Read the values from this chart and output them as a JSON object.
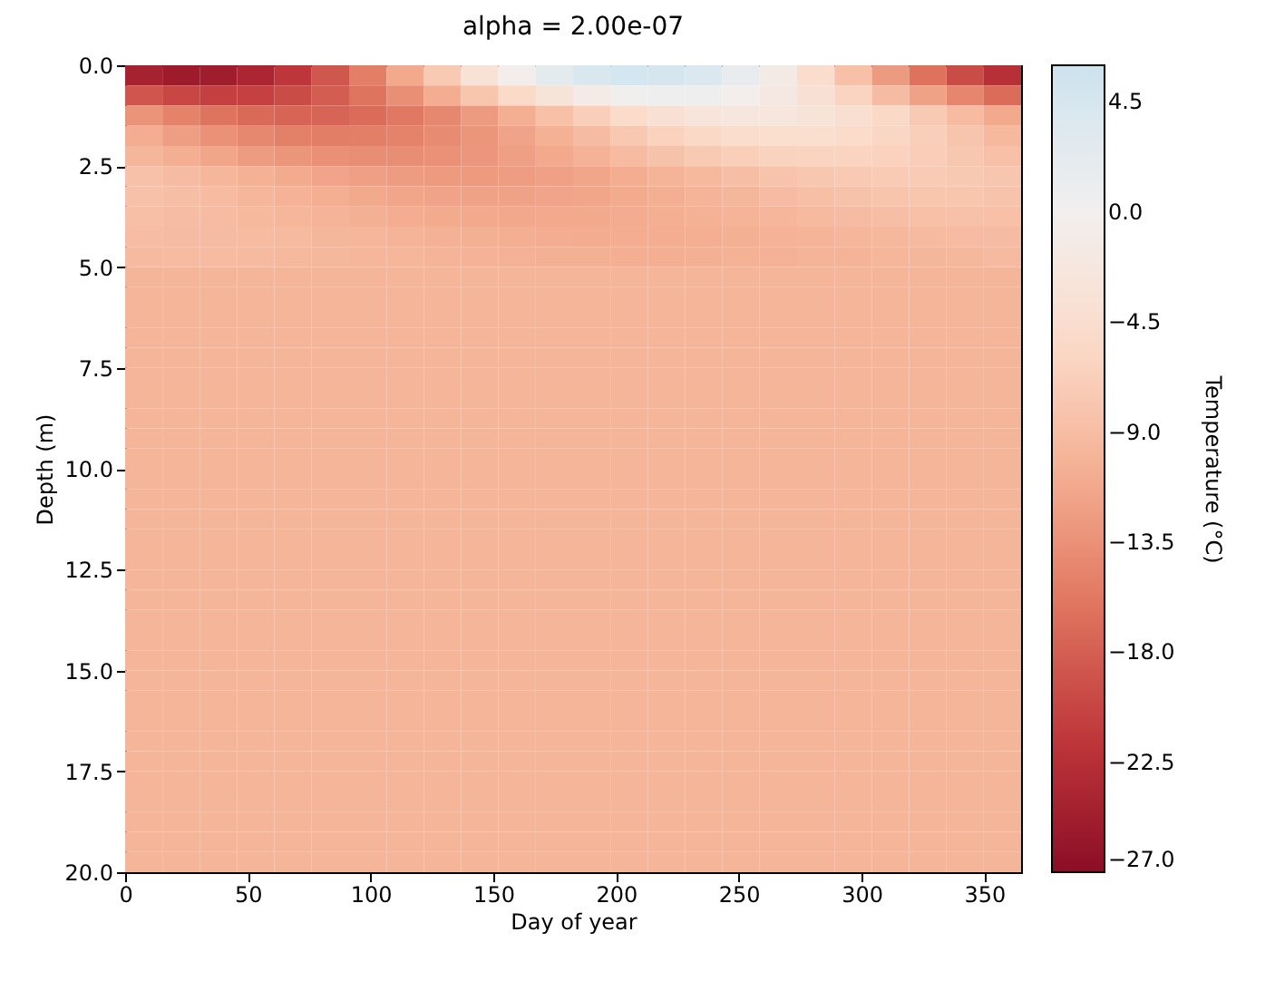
{
  "chart_data": {
    "type": "heatmap",
    "title": "alpha = 2.00e-07",
    "xlabel": "Day of year",
    "ylabel": "Depth (m)",
    "clabel": "Temperature (°C)",
    "x": [
      7.6,
      22.8,
      38.0,
      53.2,
      68.4,
      83.6,
      98.9,
      114.1,
      129.3,
      144.5,
      159.7,
      174.9,
      190.1,
      205.3,
      220.5,
      235.7,
      250.9,
      266.1,
      281.4,
      296.6,
      311.8,
      327.0,
      342.2,
      357.4
    ],
    "y": [
      0.25,
      0.75,
      1.25,
      1.75,
      2.25,
      2.75,
      3.25,
      3.75,
      4.25,
      4.75,
      5.25,
      5.75,
      6.25,
      6.75,
      7.25,
      7.75,
      8.25,
      8.75,
      9.25,
      9.75,
      10.25,
      10.75,
      11.25,
      11.75,
      12.25,
      12.75,
      13.25,
      13.75,
      14.25,
      14.75,
      15.25,
      15.75,
      16.25,
      16.75,
      17.25,
      17.75,
      18.25,
      18.75,
      19.25,
      19.75
    ],
    "xlim": [
      0,
      365
    ],
    "xticks": [
      0,
      50,
      100,
      150,
      200,
      250,
      300,
      350
    ],
    "ylim": [
      20,
      0
    ],
    "yticks": [
      {
        "value": 0,
        "label": "0.0"
      },
      {
        "value": 2.5,
        "label": "2.5"
      },
      {
        "value": 5,
        "label": "5.0"
      },
      {
        "value": 7.5,
        "label": "7.5"
      },
      {
        "value": 10,
        "label": "10.0"
      },
      {
        "value": 12.5,
        "label": "12.5"
      },
      {
        "value": 15,
        "label": "15.0"
      },
      {
        "value": 17.5,
        "label": "17.5"
      },
      {
        "value": 20,
        "label": "20.0"
      }
    ],
    "clim": [
      -27,
      6
    ],
    "cticks": [
      {
        "value": -27,
        "label": "−27.0"
      },
      {
        "value": -22.5,
        "label": "−22.5"
      },
      {
        "value": -18,
        "label": "−18.0"
      },
      {
        "value": -13.5,
        "label": "−13.5"
      },
      {
        "value": -9,
        "label": "−9.0"
      },
      {
        "value": -4.5,
        "label": "−4.5"
      },
      {
        "value": 0,
        "label": "0.0"
      },
      {
        "value": 4.5,
        "label": "4.5"
      }
    ],
    "cells": [
      [
        -24.3,
        -25.1,
        -24.9,
        -23.7,
        -21.6,
        -18.7,
        -15.2,
        -11.3,
        -7.4,
        -3.6,
        -0.3,
        2.4,
        4.3,
        5.1,
        4.9,
        3.7,
        1.6,
        -1.3,
        -4.8,
        -8.7,
        -12.6,
        -16.4,
        -19.7,
        -22.4
      ],
      [
        -18.8,
        -20.1,
        -20.7,
        -20.6,
        -19.7,
        -18.2,
        -16.2,
        -13.7,
        -10.9,
        -8.1,
        -5.5,
        -3.1,
        -1.2,
        0.1,
        0.7,
        0.6,
        -0.3,
        -1.8,
        -3.8,
        -6.3,
        -9.1,
        -11.9,
        -14.5,
        -16.9
      ],
      [
        -13.2,
        -14.9,
        -16.2,
        -17.1,
        -17.6,
        -17.5,
        -16.9,
        -15.8,
        -14.4,
        -12.6,
        -10.7,
        -8.7,
        -6.8,
        -5.1,
        -3.8,
        -2.9,
        -2.4,
        -2.5,
        -3.1,
        -4.2,
        -5.6,
        -7.4,
        -9.3,
        -11.3
      ],
      [
        -10.9,
        -12.3,
        -13.5,
        -14.4,
        -15.1,
        -15.4,
        -15.3,
        -14.9,
        -14.1,
        -13.1,
        -11.8,
        -10.5,
        -9.1,
        -7.7,
        -6.5,
        -5.6,
        -4.9,
        -4.6,
        -4.7,
        -5.1,
        -5.9,
        -6.9,
        -8.2,
        -9.5
      ],
      [
        -9.7,
        -10.7,
        -11.6,
        -12.5,
        -13.1,
        -13.6,
        -13.8,
        -13.8,
        -13.5,
        -12.9,
        -12.2,
        -11.3,
        -10.3,
        -9.3,
        -8.4,
        -7.5,
        -6.9,
        -6.4,
        -6.2,
        -6.2,
        -6.5,
        -7.1,
        -7.8,
        -8.7
      ],
      [
        -8.5,
        -9.1,
        -9.8,
        -10.5,
        -11.1,
        -11.7,
        -12.2,
        -12.5,
        -12.7,
        -12.7,
        -12.4,
        -12.1,
        -11.5,
        -10.9,
        -10.2,
        -9.5,
        -8.9,
        -8.3,
        -7.8,
        -7.5,
        -7.3,
        -7.3,
        -7.6,
        -7.9
      ],
      [
        -8.5,
        -8.9,
        -9.3,
        -9.8,
        -10.3,
        -10.8,
        -11.2,
        -11.6,
        -11.8,
        -11.9,
        -11.9,
        -11.7,
        -11.5,
        -11.1,
        -10.7,
        -10.2,
        -9.7,
        -9.2,
        -8.8,
        -8.4,
        -8.2,
        -8.1,
        -8.1,
        -8.3
      ],
      [
        -8.8,
        -9.0,
        -9.2,
        -9.5,
        -9.9,
        -10.2,
        -10.6,
        -10.9,
        -11.1,
        -11.3,
        -11.4,
        -11.3,
        -11.2,
        -11.0,
        -10.8,
        -10.5,
        -10.1,
        -9.8,
        -9.4,
        -9.1,
        -8.9,
        -8.7,
        -8.6,
        -8.7
      ],
      [
        -9.0,
        -9.1,
        -9.1,
        -9.3,
        -9.4,
        -9.7,
        -9.9,
        -10.2,
        -10.4,
        -10.6,
        -10.8,
        -10.9,
        -11.0,
        -10.9,
        -10.9,
        -10.7,
        -10.6,
        -10.3,
        -10.1,
        -9.8,
        -9.6,
        -9.4,
        -9.2,
        -9.1
      ],
      [
        -9.4,
        -9.3,
        -9.3,
        -9.4,
        -9.5,
        -9.6,
        -9.8,
        -9.9,
        -10.1,
        -10.3,
        -10.4,
        -10.6,
        -10.6,
        -10.7,
        -10.7,
        -10.6,
        -10.5,
        -10.4,
        -10.2,
        -10.1,
        -9.9,
        -9.7,
        -9.6,
        -9.4
      ],
      [
        -10,
        -10,
        -10,
        -10,
        -10,
        -10,
        -10,
        -10,
        -10,
        -10,
        -10,
        -10,
        -10,
        -10,
        -10,
        -10,
        -10,
        -10,
        -10,
        -10,
        -10,
        -10,
        -10,
        -10
      ],
      [
        -10,
        -10,
        -10,
        -10,
        -10,
        -10,
        -10,
        -10,
        -10,
        -10,
        -10,
        -10,
        -10,
        -10,
        -10,
        -10,
        -10,
        -10,
        -10,
        -10,
        -10,
        -10,
        -10,
        -10
      ],
      [
        -10,
        -10,
        -10,
        -10,
        -10,
        -10,
        -10,
        -10,
        -10,
        -10,
        -10,
        -10,
        -10,
        -10,
        -10,
        -10,
        -10,
        -10,
        -10,
        -10,
        -10,
        -10,
        -10,
        -10
      ],
      [
        -10,
        -10,
        -10,
        -10,
        -10,
        -10,
        -10,
        -10,
        -10,
        -10,
        -10,
        -10,
        -10,
        -10,
        -10,
        -10,
        -10,
        -10,
        -10,
        -10,
        -10,
        -10,
        -10,
        -10
      ],
      [
        -10,
        -10,
        -10,
        -10,
        -10,
        -10,
        -10,
        -10,
        -10,
        -10,
        -10,
        -10,
        -10,
        -10,
        -10,
        -10,
        -10,
        -10,
        -10,
        -10,
        -10,
        -10,
        -10,
        -10
      ],
      [
        -10,
        -10,
        -10,
        -10,
        -10,
        -10,
        -10,
        -10,
        -10,
        -10,
        -10,
        -10,
        -10,
        -10,
        -10,
        -10,
        -10,
        -10,
        -10,
        -10,
        -10,
        -10,
        -10,
        -10
      ],
      [
        -10,
        -10,
        -10,
        -10,
        -10,
        -10,
        -10,
        -10,
        -10,
        -10,
        -10,
        -10,
        -10,
        -10,
        -10,
        -10,
        -10,
        -10,
        -10,
        -10,
        -10,
        -10,
        -10,
        -10
      ],
      [
        -10,
        -10,
        -10,
        -10,
        -10,
        -10,
        -10,
        -10,
        -10,
        -10,
        -10,
        -10,
        -10,
        -10,
        -10,
        -10,
        -10,
        -10,
        -10,
        -10,
        -10,
        -10,
        -10,
        -10
      ],
      [
        -10,
        -10,
        -10,
        -10,
        -10,
        -10,
        -10,
        -10,
        -10,
        -10,
        -10,
        -10,
        -10,
        -10,
        -10,
        -10,
        -10,
        -10,
        -10,
        -10,
        -10,
        -10,
        -10,
        -10
      ],
      [
        -10,
        -10,
        -10,
        -10,
        -10,
        -10,
        -10,
        -10,
        -10,
        -10,
        -10,
        -10,
        -10,
        -10,
        -10,
        -10,
        -10,
        -10,
        -10,
        -10,
        -10,
        -10,
        -10,
        -10
      ],
      [
        -10,
        -10,
        -10,
        -10,
        -10,
        -10,
        -10,
        -10,
        -10,
        -10,
        -10,
        -10,
        -10,
        -10,
        -10,
        -10,
        -10,
        -10,
        -10,
        -10,
        -10,
        -10,
        -10,
        -10
      ],
      [
        -10,
        -10,
        -10,
        -10,
        -10,
        -10,
        -10,
        -10,
        -10,
        -10,
        -10,
        -10,
        -10,
        -10,
        -10,
        -10,
        -10,
        -10,
        -10,
        -10,
        -10,
        -10,
        -10,
        -10
      ],
      [
        -10,
        -10,
        -10,
        -10,
        -10,
        -10,
        -10,
        -10,
        -10,
        -10,
        -10,
        -10,
        -10,
        -10,
        -10,
        -10,
        -10,
        -10,
        -10,
        -10,
        -10,
        -10,
        -10,
        -10
      ],
      [
        -10,
        -10,
        -10,
        -10,
        -10,
        -10,
        -10,
        -10,
        -10,
        -10,
        -10,
        -10,
        -10,
        -10,
        -10,
        -10,
        -10,
        -10,
        -10,
        -10,
        -10,
        -10,
        -10,
        -10
      ],
      [
        -10,
        -10,
        -10,
        -10,
        -10,
        -10,
        -10,
        -10,
        -10,
        -10,
        -10,
        -10,
        -10,
        -10,
        -10,
        -10,
        -10,
        -10,
        -10,
        -10,
        -10,
        -10,
        -10,
        -10
      ],
      [
        -10,
        -10,
        -10,
        -10,
        -10,
        -10,
        -10,
        -10,
        -10,
        -10,
        -10,
        -10,
        -10,
        -10,
        -10,
        -10,
        -10,
        -10,
        -10,
        -10,
        -10,
        -10,
        -10,
        -10
      ],
      [
        -10,
        -10,
        -10,
        -10,
        -10,
        -10,
        -10,
        -10,
        -10,
        -10,
        -10,
        -10,
        -10,
        -10,
        -10,
        -10,
        -10,
        -10,
        -10,
        -10,
        -10,
        -10,
        -10,
        -10
      ],
      [
        -10,
        -10,
        -10,
        -10,
        -10,
        -10,
        -10,
        -10,
        -10,
        -10,
        -10,
        -10,
        -10,
        -10,
        -10,
        -10,
        -10,
        -10,
        -10,
        -10,
        -10,
        -10,
        -10,
        -10
      ],
      [
        -10,
        -10,
        -10,
        -10,
        -10,
        -10,
        -10,
        -10,
        -10,
        -10,
        -10,
        -10,
        -10,
        -10,
        -10,
        -10,
        -10,
        -10,
        -10,
        -10,
        -10,
        -10,
        -10,
        -10
      ],
      [
        -10,
        -10,
        -10,
        -10,
        -10,
        -10,
        -10,
        -10,
        -10,
        -10,
        -10,
        -10,
        -10,
        -10,
        -10,
        -10,
        -10,
        -10,
        -10,
        -10,
        -10,
        -10,
        -10,
        -10
      ],
      [
        -10,
        -10,
        -10,
        -10,
        -10,
        -10,
        -10,
        -10,
        -10,
        -10,
        -10,
        -10,
        -10,
        -10,
        -10,
        -10,
        -10,
        -10,
        -10,
        -10,
        -10,
        -10,
        -10,
        -10
      ],
      [
        -10,
        -10,
        -10,
        -10,
        -10,
        -10,
        -10,
        -10,
        -10,
        -10,
        -10,
        -10,
        -10,
        -10,
        -10,
        -10,
        -10,
        -10,
        -10,
        -10,
        -10,
        -10,
        -10,
        -10
      ],
      [
        -10,
        -10,
        -10,
        -10,
        -10,
        -10,
        -10,
        -10,
        -10,
        -10,
        -10,
        -10,
        -10,
        -10,
        -10,
        -10,
        -10,
        -10,
        -10,
        -10,
        -10,
        -10,
        -10,
        -10
      ],
      [
        -10,
        -10,
        -10,
        -10,
        -10,
        -10,
        -10,
        -10,
        -10,
        -10,
        -10,
        -10,
        -10,
        -10,
        -10,
        -10,
        -10,
        -10,
        -10,
        -10,
        -10,
        -10,
        -10,
        -10
      ],
      [
        -10,
        -10,
        -10,
        -10,
        -10,
        -10,
        -10,
        -10,
        -10,
        -10,
        -10,
        -10,
        -10,
        -10,
        -10,
        -10,
        -10,
        -10,
        -10,
        -10,
        -10,
        -10,
        -10,
        -10
      ],
      [
        -10,
        -10,
        -10,
        -10,
        -10,
        -10,
        -10,
        -10,
        -10,
        -10,
        -10,
        -10,
        -10,
        -10,
        -10,
        -10,
        -10,
        -10,
        -10,
        -10,
        -10,
        -10,
        -10,
        -10
      ],
      [
        -10,
        -10,
        -10,
        -10,
        -10,
        -10,
        -10,
        -10,
        -10,
        -10,
        -10,
        -10,
        -10,
        -10,
        -10,
        -10,
        -10,
        -10,
        -10,
        -10,
        -10,
        -10,
        -10,
        -10
      ],
      [
        -10,
        -10,
        -10,
        -10,
        -10,
        -10,
        -10,
        -10,
        -10,
        -10,
        -10,
        -10,
        -10,
        -10,
        -10,
        -10,
        -10,
        -10,
        -10,
        -10,
        -10,
        -10,
        -10,
        -10
      ],
      [
        -10,
        -10,
        -10,
        -10,
        -10,
        -10,
        -10,
        -10,
        -10,
        -10,
        -10,
        -10,
        -10,
        -10,
        -10,
        -10,
        -10,
        -10,
        -10,
        -10,
        -10,
        -10,
        -10,
        -10
      ],
      [
        -10,
        -10,
        -10,
        -10,
        -10,
        -10,
        -10,
        -10,
        -10,
        -10,
        -10,
        -10,
        -10,
        -10,
        -10,
        -10,
        -10,
        -10,
        -10,
        -10,
        -10,
        -10,
        -10,
        -10
      ]
    ]
  }
}
